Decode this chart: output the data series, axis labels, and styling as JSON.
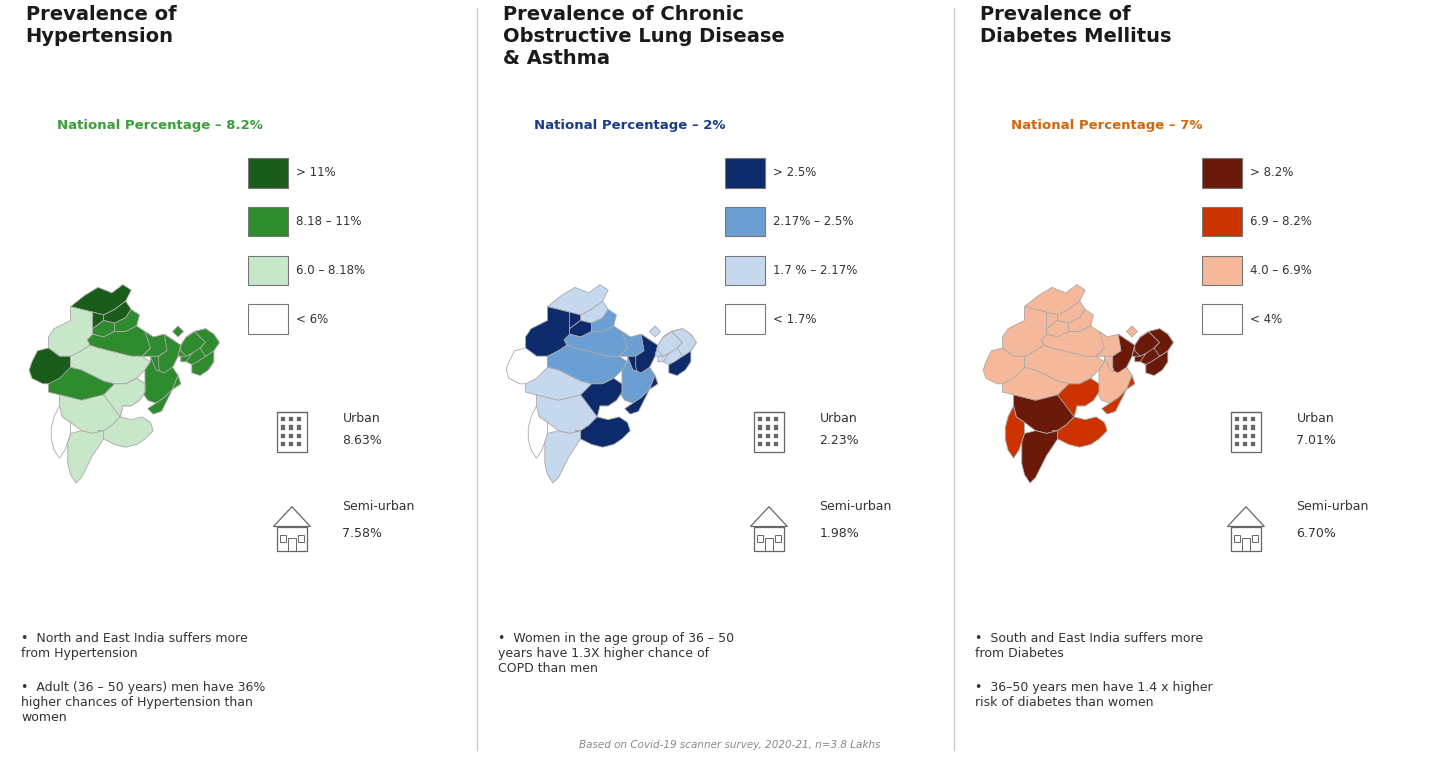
{
  "panels": [
    {
      "title": "Prevalence of\nHypertension",
      "national_label": "National Percentage – 8.2%",
      "national_color": "#3a9e3a",
      "legend": [
        {
          "color": "#1a5c1a",
          "label": "> 11%"
        },
        {
          "color": "#2e8b2e",
          "label": "8.18 – 11%"
        },
        {
          "color": "#c8e6c8",
          "label": "6.0 – 8.18%"
        },
        {
          "color": "#ffffff",
          "label": "< 6%"
        }
      ],
      "urban_pct": "8.63%",
      "semiurban_pct": "7.58%",
      "bullets": [
        "North and East India suffers more\nfrom Hypertension",
        "Adult (36 – 50 years) men have 36%\nhigher chances of Hypertension than\nwomen"
      ]
    },
    {
      "title": "Prevalence of Chronic\nObstructive Lung Disease\n& Asthma",
      "national_label": "National Percentage – 2%",
      "national_color": "#1a3a8c",
      "legend": [
        {
          "color": "#0d2b6b",
          "label": "> 2.5%"
        },
        {
          "color": "#6b9fd4",
          "label": "2.17% – 2.5%"
        },
        {
          "color": "#c5d8ee",
          "label": "1.7 % – 2.17%"
        },
        {
          "color": "#ffffff",
          "label": "< 1.7%"
        }
      ],
      "urban_pct": "2.23%",
      "semiurban_pct": "1.98%",
      "bullets": [
        "Women in the age group of 36 – 50\nyears have 1.3X higher chance of\nCOPD than men"
      ]
    },
    {
      "title": "Prevalence of\nDiabetes Mellitus",
      "national_label": "National Percentage – 7%",
      "national_color": "#d4660a",
      "legend": [
        {
          "color": "#6b1a0a",
          "label": "> 8.2%"
        },
        {
          "color": "#cc3300",
          "label": "6.9 – 8.2%"
        },
        {
          "color": "#f5b89a",
          "label": "4.0 – 6.9%"
        },
        {
          "color": "#ffffff",
          "label": "< 4%"
        }
      ],
      "urban_pct": "7.01%",
      "semiurban_pct": "6.70%",
      "bullets": [
        "South and East India suffers more\nfrom Diabetes",
        "36–50 years men have 1.4 x higher\nrisk of diabetes than women"
      ]
    }
  ],
  "footnote": "Based on Covid-19 scanner survey, 2020-21, n=3.8 Lakhs",
  "bg_color": "#ffffff",
  "title_fontsize": 14,
  "body_fontsize": 9,
  "legend_fontsize": 8.5
}
